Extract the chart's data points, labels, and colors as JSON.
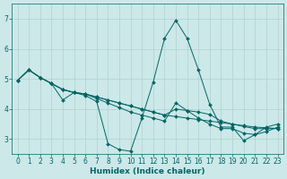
{
  "xlabel": "Humidex (Indice chaleur)",
  "xlim": [
    -0.5,
    23.5
  ],
  "ylim": [
    2.5,
    7.5
  ],
  "yticks": [
    3,
    4,
    5,
    6,
    7
  ],
  "xticks": [
    0,
    1,
    2,
    3,
    4,
    5,
    6,
    7,
    8,
    9,
    10,
    11,
    12,
    13,
    14,
    15,
    16,
    17,
    18,
    19,
    20,
    21,
    22,
    23
  ],
  "bg_color": "#cce8e8",
  "grid_color": "#b0d0d0",
  "line_color": "#006666",
  "lines": [
    {
      "x": [
        0,
        1,
        2,
        3,
        4,
        5,
        6,
        7,
        8,
        9,
        10,
        11,
        12,
        13,
        14,
        15,
        16,
        17,
        18,
        19,
        20,
        21,
        22,
        23
      ],
      "y": [
        4.95,
        5.3,
        5.05,
        4.85,
        4.3,
        4.55,
        4.45,
        4.25,
        2.85,
        2.65,
        2.6,
        3.7,
        4.9,
        6.35,
        6.95,
        6.35,
        5.3,
        4.15,
        3.4,
        3.4,
        2.95,
        3.15,
        3.4,
        3.5
      ]
    },
    {
      "x": [
        0,
        1,
        2,
        3,
        4,
        5,
        6,
        7,
        8,
        9,
        10,
        11,
        12,
        13,
        14,
        15,
        16,
        17,
        18,
        19,
        20,
        21,
        22,
        23
      ],
      "y": [
        4.95,
        5.3,
        5.05,
        4.85,
        4.65,
        4.55,
        4.5,
        4.4,
        4.3,
        4.2,
        4.1,
        4.0,
        3.9,
        3.8,
        3.75,
        3.7,
        3.65,
        3.6,
        3.55,
        3.5,
        3.45,
        3.4,
        3.38,
        3.35
      ]
    },
    {
      "x": [
        0,
        1,
        2,
        3,
        4,
        5,
        6,
        7,
        8,
        9,
        10,
        11,
        12,
        13,
        14,
        15,
        16,
        17,
        18,
        19,
        20,
        21,
        22,
        23
      ],
      "y": [
        4.95,
        5.3,
        5.05,
        4.85,
        4.65,
        4.55,
        4.5,
        4.4,
        4.3,
        4.2,
        4.1,
        4.0,
        3.9,
        3.8,
        4.0,
        3.95,
        3.9,
        3.82,
        3.6,
        3.5,
        3.42,
        3.35,
        3.35,
        3.35
      ]
    },
    {
      "x": [
        0,
        1,
        2,
        3,
        4,
        5,
        6,
        7,
        8,
        9,
        10,
        11,
        12,
        13,
        14,
        15,
        16,
        17,
        18,
        19,
        20,
        21,
        22,
        23
      ],
      "y": [
        4.95,
        5.3,
        5.05,
        4.85,
        4.65,
        4.55,
        4.5,
        4.35,
        4.2,
        4.05,
        3.9,
        3.8,
        3.7,
        3.6,
        4.2,
        3.95,
        3.7,
        3.5,
        3.35,
        3.35,
        3.2,
        3.15,
        3.25,
        3.4
      ]
    }
  ]
}
